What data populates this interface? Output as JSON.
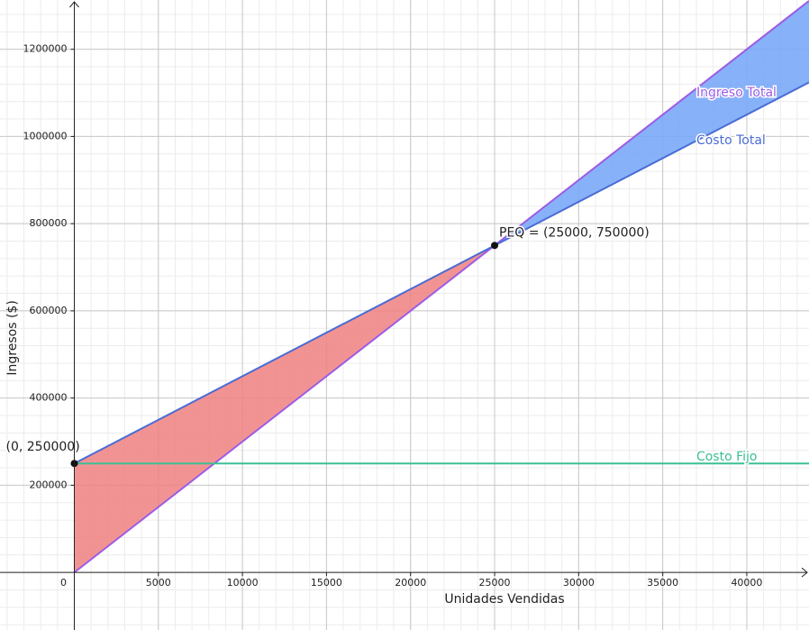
{
  "chart_data": {
    "type": "line",
    "x_label": "Unidades Vendidas",
    "y_label": "Ingresos ($)",
    "x": [
      0,
      25000,
      43700
    ],
    "series": [
      {
        "name": "Ingreso Total",
        "color": "#9c5ce6",
        "values": [
          0,
          750000,
          1311000
        ]
      },
      {
        "name": "Costo Total",
        "color": "#4a6cd4",
        "values": [
          250000,
          750000,
          1124000
        ]
      },
      {
        "name": "Costo Fijo",
        "color": "#3cbf95",
        "values": [
          250000,
          250000,
          250000
        ]
      }
    ],
    "loss_color": "#f08080",
    "profit_color": "#7aa8f7",
    "points": [
      {
        "label": "(0, 250000)",
        "x": 0,
        "y": 250000
      },
      {
        "label": "PEQ = (25000, 750000)",
        "x": 25000,
        "y": 750000
      }
    ],
    "xlim": [
      -4420,
      43700
    ],
    "ylim": [
      -132000,
      1313000
    ],
    "xticks": [
      0,
      5000,
      10000,
      15000,
      20000,
      25000,
      30000,
      35000,
      40000
    ],
    "yticks": [
      200000,
      400000,
      600000,
      800000,
      1000000,
      1200000
    ],
    "grid": true,
    "minor_grid_divisions": 5
  }
}
